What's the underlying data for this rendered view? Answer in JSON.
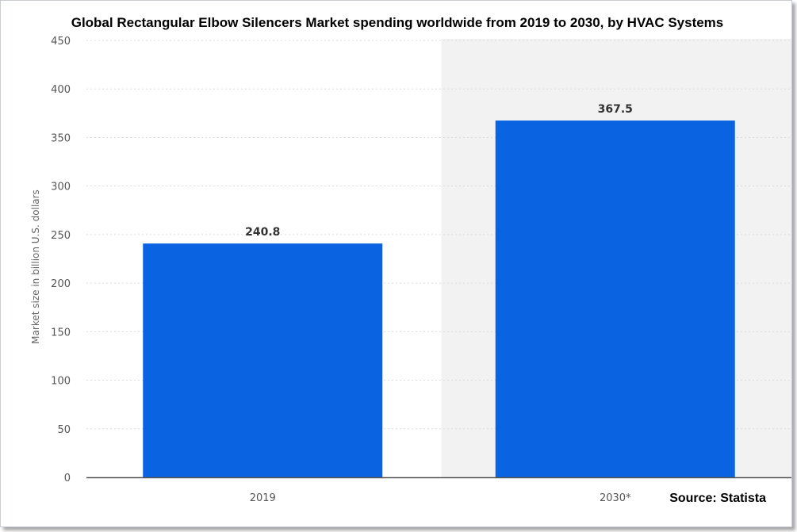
{
  "chart_data": {
    "type": "bar",
    "title": "Global Rectangular Elbow Silencers Market spending worldwide from 2019 to 2030, by HVAC Systems",
    "categories": [
      "2019",
      "2030*"
    ],
    "values": [
      240.8,
      367.5
    ],
    "data_labels": [
      "240.8",
      "367.5"
    ],
    "xlabel": "",
    "ylabel": "Market size in billion U.S. dollars",
    "ylim": [
      0,
      450
    ],
    "yticks": [
      0,
      50,
      100,
      150,
      200,
      250,
      300,
      350,
      400,
      450
    ],
    "grid": true,
    "legend": "none",
    "forecast_shading": "2030*"
  },
  "source": "Source: Statista",
  "colors": {
    "bar": "#0a63e0",
    "forecast_background": "#f2f2f2",
    "grid": "#dcdcdc",
    "axis": "#555555"
  }
}
